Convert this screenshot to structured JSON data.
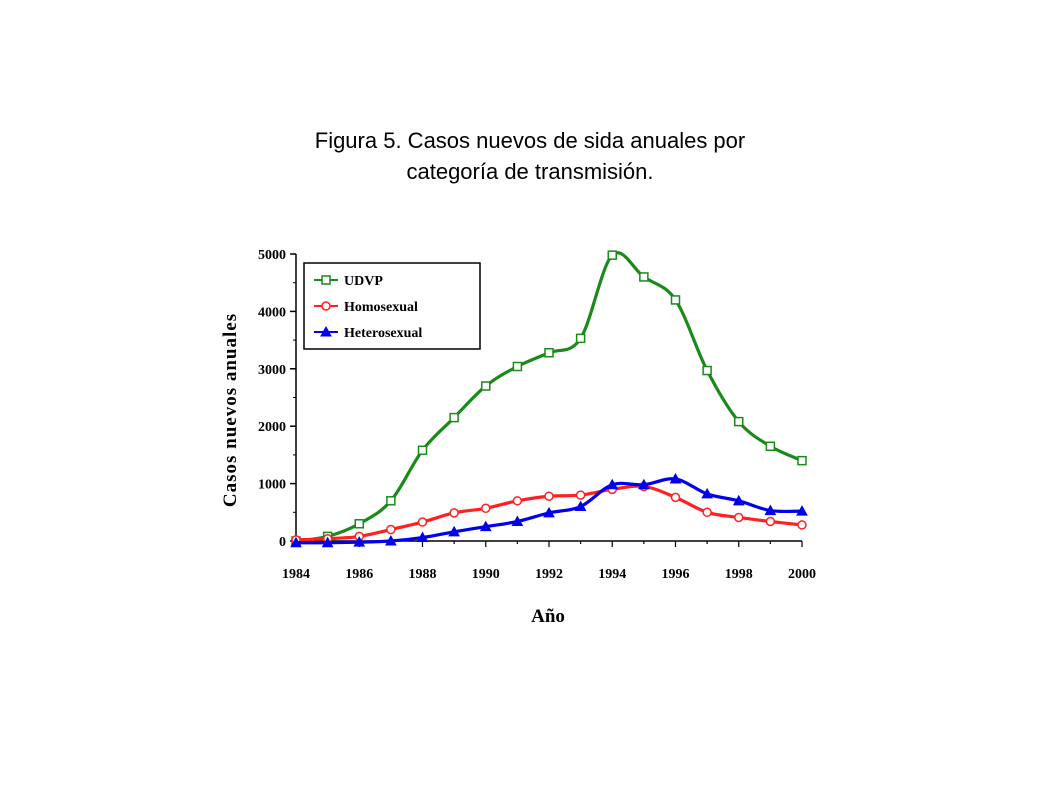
{
  "chart_data": {
    "type": "line",
    "title": "Figura 5. Casos nuevos de sida anuales por categoría de transmisión.",
    "title_lines": [
      "Figura 5. Casos nuevos de sida anuales por",
      "categoría de transmisión."
    ],
    "xlabel": "Año",
    "ylabel": "Casos nuevos anuales",
    "xlim": [
      1984,
      2000
    ],
    "ylim": [
      0,
      5000
    ],
    "xticks": [
      1984,
      1986,
      1988,
      1990,
      1992,
      1994,
      1996,
      1998,
      2000
    ],
    "yticks": [
      0,
      1000,
      2000,
      3000,
      4000,
      5000
    ],
    "grid": false,
    "legend_position": "top-left",
    "x": [
      1984,
      1985,
      1986,
      1987,
      1988,
      1989,
      1990,
      1991,
      1992,
      1993,
      1994,
      1995,
      1996,
      1997,
      1998,
      1999,
      2000
    ],
    "series": [
      {
        "name": "UDVP",
        "color": "#1a8a1a",
        "marker": "square",
        "values": [
          0,
          80,
          300,
          700,
          1580,
          2150,
          2700,
          3040,
          3280,
          3530,
          4980,
          4600,
          4200,
          2970,
          2080,
          1650,
          1400
        ]
      },
      {
        "name": "Homosexual",
        "color": "#ff2020",
        "marker": "circle",
        "values": [
          20,
          40,
          80,
          200,
          330,
          490,
          570,
          700,
          780,
          800,
          900,
          950,
          760,
          500,
          410,
          340,
          280
        ]
      },
      {
        "name": "Heterosexual",
        "color": "#0000ee",
        "marker": "triangle",
        "values": [
          -30,
          -30,
          -20,
          0,
          60,
          160,
          250,
          340,
          490,
          600,
          980,
          980,
          1080,
          820,
          700,
          530,
          520
        ]
      }
    ]
  }
}
